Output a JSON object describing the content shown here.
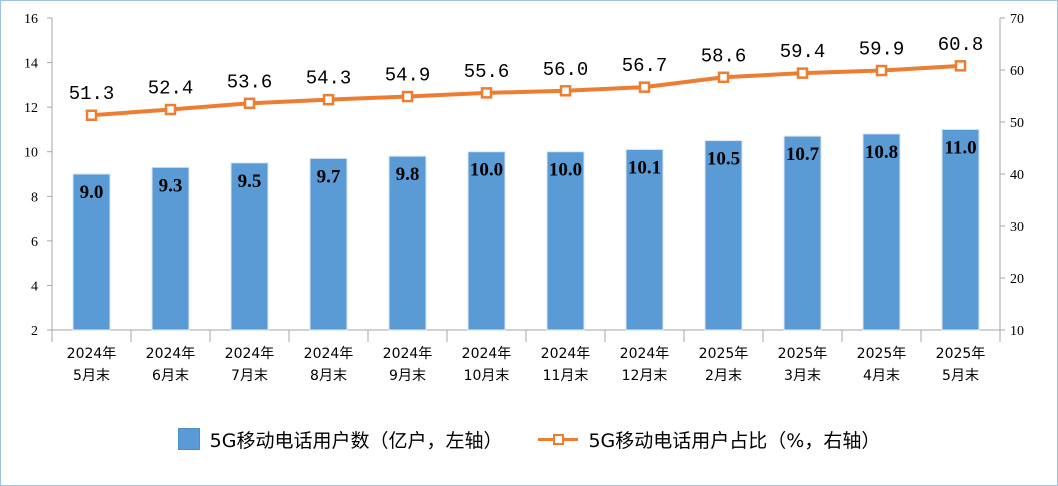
{
  "chart_data": {
    "type": "bar+line",
    "categories": [
      [
        "2024年",
        "5月末"
      ],
      [
        "2024年",
        "6月末"
      ],
      [
        "2024年",
        "7月末"
      ],
      [
        "2024年",
        "8月末"
      ],
      [
        "2024年",
        "9月末"
      ],
      [
        "2024年",
        "10月末"
      ],
      [
        "2024年",
        "11月末"
      ],
      [
        "2024年",
        "12月末"
      ],
      [
        "2025年",
        "2月末"
      ],
      [
        "2025年",
        "3月末"
      ],
      [
        "2025年",
        "4月末"
      ],
      [
        "2025年",
        "5月末"
      ]
    ],
    "series": [
      {
        "name": "5G移动电话用户数（亿户，左轴）",
        "type": "bar",
        "axis": "left",
        "values": [
          9.0,
          9.3,
          9.5,
          9.7,
          9.8,
          10.0,
          10.0,
          10.1,
          10.5,
          10.7,
          10.8,
          11.0
        ],
        "labels": [
          "9.0",
          "9.3",
          "9.5",
          "9.7",
          "9.8",
          "10.0",
          "10.0",
          "10.1",
          "10.5",
          "10.7",
          "10.8",
          "11.0"
        ],
        "color": "#5b9bd5"
      },
      {
        "name": "5G移动电话用户占比（%，右轴）",
        "type": "line",
        "axis": "right",
        "values": [
          51.3,
          52.4,
          53.6,
          54.3,
          54.9,
          55.6,
          56.0,
          56.7,
          58.6,
          59.4,
          59.9,
          60.8
        ],
        "labels": [
          "51.3",
          "52.4",
          "53.6",
          "54.3",
          "54.9",
          "55.6",
          "56.0",
          "56.7",
          "58.6",
          "59.4",
          "59.9",
          "60.8"
        ],
        "color": "#ed7d31"
      }
    ],
    "left_axis": {
      "min": 2,
      "max": 16,
      "ticks": [
        "2",
        "4",
        "6",
        "8",
        "10",
        "12",
        "14",
        "16"
      ]
    },
    "right_axis": {
      "min": 10,
      "max": 70,
      "ticks": [
        "10",
        "20",
        "30",
        "40",
        "50",
        "60",
        "70"
      ]
    },
    "grid": false,
    "legend_position": "bottom"
  }
}
